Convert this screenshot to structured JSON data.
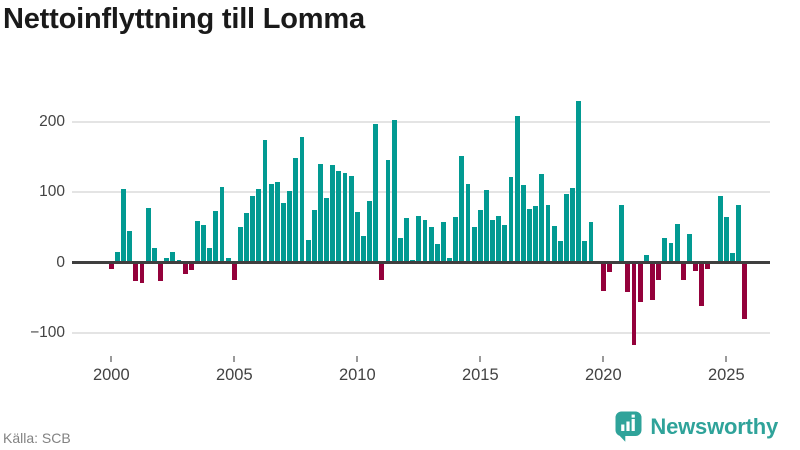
{
  "title": "Nettoinflyttning till Lomma",
  "source": "Källa: SCB",
  "brand": {
    "name": "Newsworthy"
  },
  "colors": {
    "positive": "#029a92",
    "negative": "#94013b",
    "grid": "#e4e4e4",
    "zero_line": "#3f3f3f",
    "tick_label": "#434343",
    "source_text": "#828282",
    "brand_teal": "#2fa39a",
    "title_text": "#1a1a1a",
    "background": "#ffffff"
  },
  "chart_data": {
    "type": "bar",
    "title": "Nettoinflyttning till Lomma",
    "frequency": "quarterly",
    "start_period": "2000 Q1",
    "end_period": "2025 Q4",
    "x_tick_labels": [
      "2000",
      "2005",
      "2010",
      "2015",
      "2020",
      "2025"
    ],
    "y_ticks": [
      200,
      100,
      0,
      -100
    ],
    "ylim": [
      -130,
      245
    ],
    "grid": true,
    "legend": "none",
    "series": [
      {
        "name": "Nettoinflyttning",
        "values": [
          -9,
          15,
          104,
          45,
          -26,
          -29,
          78,
          20,
          -27,
          7,
          15,
          4,
          -17,
          -10,
          59,
          53,
          20,
          73,
          107,
          7,
          -25,
          51,
          71,
          94,
          105,
          174,
          112,
          115,
          85,
          101,
          148,
          178,
          32,
          75,
          140,
          92,
          138,
          130,
          127,
          123,
          72,
          37,
          87,
          197,
          -25,
          146,
          202,
          35,
          63,
          4,
          66,
          60,
          51,
          26,
          58,
          7,
          65,
          152,
          111,
          50,
          74,
          103,
          61,
          66,
          53,
          121,
          209,
          110,
          76,
          81,
          126,
          82,
          52,
          30,
          97,
          106,
          230,
          31,
          57,
          2,
          -40,
          -14,
          2,
          82,
          -42,
          -118,
          -56,
          10,
          -53,
          -25,
          35,
          28,
          55,
          -25,
          40,
          -12,
          -62,
          -9,
          0,
          94,
          65,
          13,
          82,
          -81
        ]
      }
    ]
  }
}
